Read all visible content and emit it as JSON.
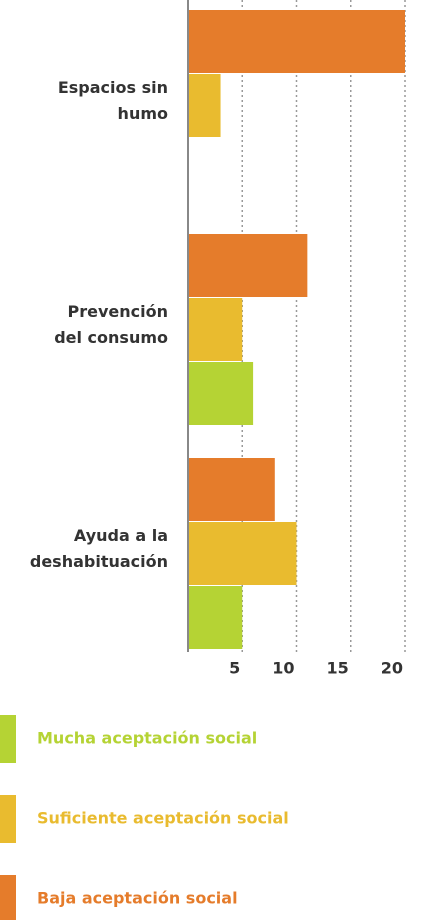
{
  "chart_data": {
    "type": "bar",
    "orientation": "horizontal",
    "categories": [
      "Espacios sin\nhumo",
      "Prevención\ndel consumo",
      "Ayuda a la\ndeshabituación"
    ],
    "series": [
      {
        "name": "Mucha aceptación social",
        "color": "#b5d334",
        "values": [
          null,
          6,
          5
        ]
      },
      {
        "name": "Suficiente aceptación social",
        "color": "#e9bb2f",
        "values": [
          3,
          5,
          10
        ]
      },
      {
        "name": "Baja aceptación social",
        "color": "#e57c2b",
        "values": [
          20,
          11,
          8
        ]
      }
    ],
    "xlim": [
      0,
      20
    ],
    "xticks": [
      5,
      10,
      15,
      20
    ],
    "grid": true
  }
}
